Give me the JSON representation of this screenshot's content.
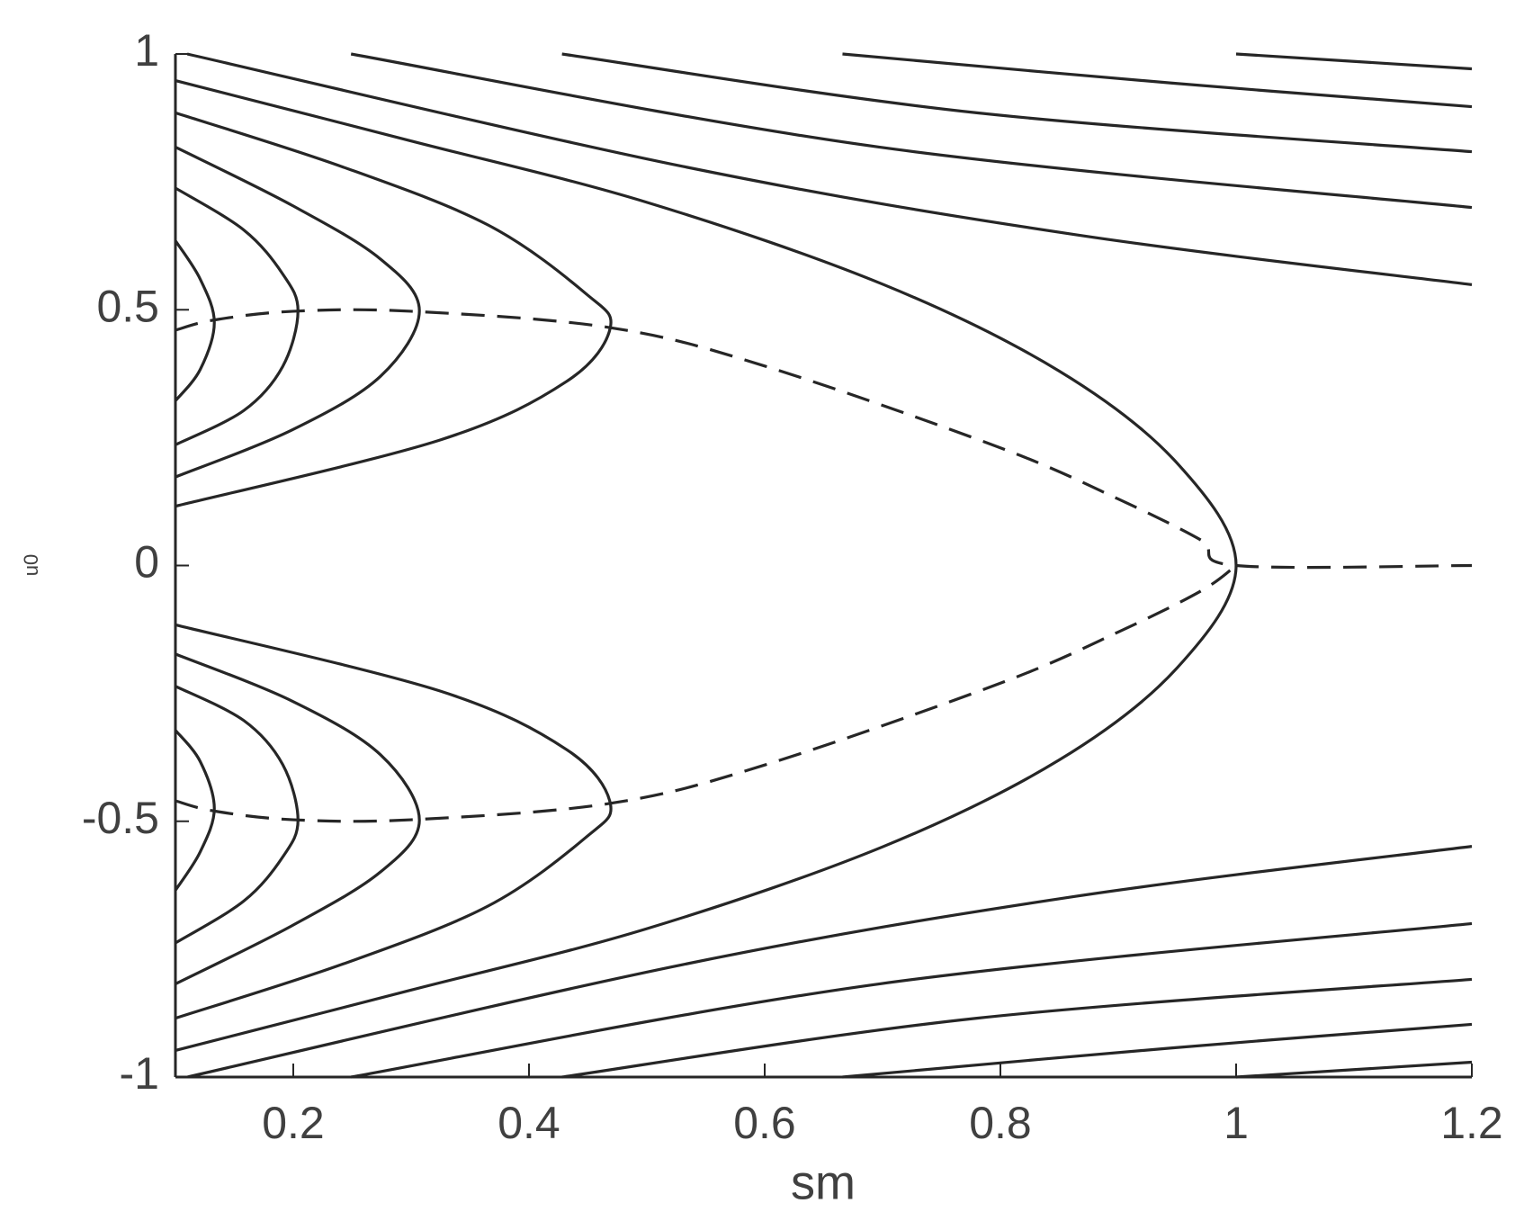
{
  "chart_data": {
    "type": "line",
    "xlabel": "sm",
    "ylabel": "u0",
    "xlim": [
      0.1,
      1.2
    ],
    "xticks": [
      0.2,
      0.4,
      0.6,
      0.8,
      1,
      1.2
    ],
    "ylim": [
      -1,
      1
    ],
    "yticks": [
      -1,
      -0.5,
      0,
      0.5,
      1
    ],
    "grid": false,
    "series": [
      {
        "color": "#262626",
        "style": "solid",
        "x": [
          0.1,
          0.121,
          0.133,
          0.121,
          0.1
        ],
        "values": [
          0.635,
          0.56,
          0.475,
          0.383,
          0.322
        ]
      },
      {
        "color": "#262626",
        "style": "solid",
        "x": [
          0.1,
          0.158,
          0.191,
          0.204,
          0.191,
          0.158,
          0.1
        ],
        "values": [
          0.738,
          0.656,
          0.57,
          0.498,
          0.389,
          0.303,
          0.236
        ]
      },
      {
        "color": "#262626",
        "style": "solid",
        "x": [
          0.1,
          0.199,
          0.274,
          0.307,
          0.274,
          0.199,
          0.1
        ],
        "values": [
          0.818,
          0.704,
          0.599,
          0.498,
          0.37,
          0.265,
          0.173
        ]
      },
      {
        "color": "#262626",
        "style": "solid",
        "x": [
          0.1,
          0.241,
          0.365,
          0.448,
          0.469,
          0.432,
          0.324,
          0.1
        ],
        "values": [
          0.885,
          0.78,
          0.666,
          0.532,
          0.465,
          0.36,
          0.245,
          0.116
        ]
      },
      {
        "color": "#262626",
        "style": "solid",
        "x": [
          0.1,
          0.121,
          0.133,
          0.121,
          0.1
        ],
        "values": [
          -0.635,
          -0.56,
          -0.475,
          -0.383,
          -0.322
        ]
      },
      {
        "color": "#262626",
        "style": "solid",
        "x": [
          0.1,
          0.158,
          0.191,
          0.204,
          0.191,
          0.158,
          0.1
        ],
        "values": [
          -0.738,
          -0.656,
          -0.57,
          -0.498,
          -0.389,
          -0.303,
          -0.236
        ]
      },
      {
        "color": "#262626",
        "style": "solid",
        "x": [
          0.1,
          0.199,
          0.274,
          0.307,
          0.274,
          0.199,
          0.1
        ],
        "values": [
          -0.818,
          -0.704,
          -0.599,
          -0.498,
          -0.37,
          -0.265,
          -0.173
        ]
      },
      {
        "color": "#262626",
        "style": "solid",
        "x": [
          0.1,
          0.241,
          0.365,
          0.448,
          0.469,
          0.432,
          0.324,
          0.1
        ],
        "values": [
          -0.885,
          -0.78,
          -0.666,
          -0.532,
          -0.465,
          -0.36,
          -0.245,
          -0.116
        ]
      },
      {
        "color": "#262626",
        "style": "solid",
        "x": [
          0.1,
          0.3,
          0.5,
          0.7,
          0.85,
          0.95,
          1.0,
          0.95,
          0.85,
          0.7,
          0.5,
          0.3,
          0.1
        ],
        "values": [
          0.948,
          0.83,
          0.71,
          0.55,
          0.38,
          0.2,
          0,
          -0.2,
          -0.38,
          -0.55,
          -0.71,
          -0.83,
          -0.948
        ]
      },
      {
        "color": "#262626",
        "style": "solid",
        "x": [
          0.11,
          0.531,
          0.863,
          1.2
        ],
        "values": [
          1,
          0.78,
          0.647,
          0.549
        ]
      },
      {
        "color": "#262626",
        "style": "solid",
        "x": [
          0.249,
          0.697,
          1.2
        ],
        "values": [
          1,
          0.818,
          0.7
        ]
      },
      {
        "color": "#262626",
        "style": "solid",
        "x": [
          0.428,
          0.78,
          1.2
        ],
        "values": [
          1,
          0.885,
          0.809
        ]
      },
      {
        "color": "#262626",
        "style": "solid",
        "x": [
          0.666,
          0.946,
          1.2
        ],
        "values": [
          1,
          0.943,
          0.897
        ]
      },
      {
        "color": "#262626",
        "style": "solid",
        "x": [
          1.0,
          1.2
        ],
        "values": [
          1,
          0.971
        ]
      },
      {
        "color": "#262626",
        "style": "solid",
        "x": [
          0.11,
          0.531,
          0.863,
          1.2
        ],
        "values": [
          -1,
          -0.78,
          -0.647,
          -0.549
        ]
      },
      {
        "color": "#262626",
        "style": "solid",
        "x": [
          0.249,
          0.697,
          1.2
        ],
        "values": [
          -1,
          -0.818,
          -0.7
        ]
      },
      {
        "color": "#262626",
        "style": "solid",
        "x": [
          0.428,
          0.78,
          1.2
        ],
        "values": [
          -1,
          -0.885,
          -0.809
        ]
      },
      {
        "color": "#262626",
        "style": "solid",
        "x": [
          0.666,
          0.946,
          1.2
        ],
        "values": [
          -1,
          -0.943,
          -0.897
        ]
      },
      {
        "color": "#262626",
        "style": "solid",
        "x": [
          1.0,
          1.2
        ],
        "values": [
          -1,
          -0.971
        ]
      },
      {
        "color": "#262626",
        "style": "dashed",
        "x": [
          0.1,
          0.133,
          0.2,
          0.3,
          0.469,
          0.6,
          0.8,
          0.9,
          0.97,
          1.0,
          1.2
        ],
        "values": [
          0.46,
          0.48,
          0.497,
          0.497,
          0.465,
          0.39,
          0.23,
          0.13,
          0.05,
          0,
          0
        ]
      },
      {
        "color": "#262626",
        "style": "dashed",
        "x": [
          0.1,
          0.133,
          0.2,
          0.3,
          0.469,
          0.6,
          0.8,
          0.9,
          0.97,
          1.0
        ],
        "values": [
          -0.46,
          -0.48,
          -0.497,
          -0.497,
          -0.465,
          -0.39,
          -0.23,
          -0.13,
          -0.05,
          0
        ]
      }
    ]
  }
}
